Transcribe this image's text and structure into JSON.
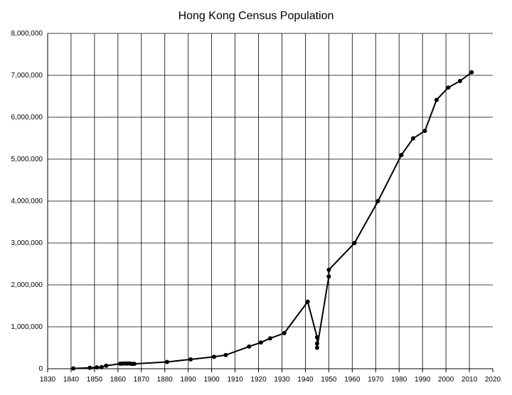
{
  "chart_data": {
    "type": "line",
    "title": "Hong Kong Census Population",
    "xlabel": "",
    "ylabel": "",
    "xlim": [
      1830,
      2020
    ],
    "ylim": [
      0,
      8000000
    ],
    "x_ticks": [
      "1830",
      "1840",
      "1850",
      "1860",
      "1870",
      "1880",
      "1890",
      "1900",
      "1910",
      "1920",
      "1930",
      "1940",
      "1950",
      "1960",
      "1970",
      "1980",
      "1990",
      "2000",
      "2010",
      "2020"
    ],
    "y_ticks": [
      "0",
      "1,000,000",
      "2,000,000",
      "3,000,000",
      "4,000,000",
      "5,000,000",
      "6,000,000",
      "7,000,000",
      "8,000,000"
    ],
    "grid": true,
    "legend": "none",
    "colors": {
      "line": "#000000",
      "marker": "#000000",
      "grid": "#000000",
      "background": "#ffffff"
    },
    "series": [
      {
        "points": [
          [
            1841,
            7450
          ],
          [
            1848,
            21500
          ],
          [
            1851,
            32983
          ],
          [
            1853,
            39017
          ],
          [
            1855,
            72607
          ],
          [
            1861,
            119321
          ],
          [
            1862,
            123511
          ],
          [
            1863,
            124850
          ],
          [
            1864,
            121498
          ],
          [
            1865,
            125504
          ],
          [
            1866,
            115098
          ],
          [
            1867,
            117471
          ],
          [
            1881,
            160402
          ],
          [
            1891,
            221441
          ],
          [
            1901,
            283975
          ],
          [
            1906,
            326000
          ],
          [
            1916,
            528000
          ],
          [
            1921,
            625166
          ],
          [
            1925,
            725000
          ],
          [
            1931,
            849751
          ],
          [
            1941,
            1600000
          ],
          [
            1945,
            750000
          ],
          [
            1945,
            600000
          ],
          [
            1945,
            500000
          ],
          [
            1950,
            2200000
          ],
          [
            1950,
            2360000
          ],
          [
            1961,
            3000000
          ],
          [
            1971,
            4000000
          ],
          [
            1981,
            5100000
          ],
          [
            1986,
            5495488
          ],
          [
            1991,
            5674114
          ],
          [
            1996,
            6412937
          ],
          [
            2001,
            6708389
          ],
          [
            2006,
            6864346
          ],
          [
            2011,
            7071576
          ]
        ]
      }
    ]
  }
}
